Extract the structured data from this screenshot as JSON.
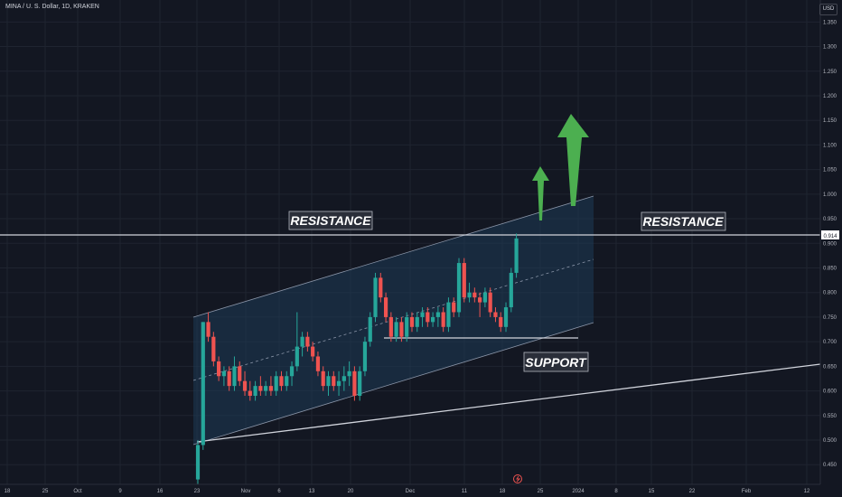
{
  "header": {
    "title": "MINA / U. S. Dollar, 1D, KRAKEN",
    "currency": "USD"
  },
  "annotations": {
    "resistance_left": "RESISTANCE",
    "resistance_right": "RESISTANCE",
    "support": "SUPPORT",
    "price_tag": "0.914"
  },
  "colors": {
    "up": "#26a69a",
    "down": "#ef5350",
    "background": "#131722",
    "grid": "#1f2430",
    "arrow": "#4caf50",
    "channel": "#1e3a56"
  },
  "chart_data": {
    "type": "candlestick",
    "y_ticks": [
      "1.350",
      "1.300",
      "1.250",
      "1.200",
      "1.150",
      "1.100",
      "1.050",
      "1.000",
      "0.950",
      "0.900",
      "0.850",
      "0.800",
      "0.750",
      "0.700",
      "0.650",
      "0.600",
      "0.550",
      "0.500",
      "0.450"
    ],
    "y_tick_values": [
      1.35,
      1.3,
      1.25,
      1.2,
      1.15,
      1.1,
      1.05,
      1.0,
      0.95,
      0.9,
      0.85,
      0.8,
      0.75,
      0.7,
      0.65,
      0.6,
      0.55,
      0.5,
      0.45
    ],
    "ylim": [
      0.41,
      1.38
    ],
    "x_ticks": [
      "18",
      "25",
      "Oct",
      "9",
      "16",
      "23",
      "Nov",
      "6",
      "13",
      "20",
      "Dec",
      "11",
      "18",
      "25",
      "2024",
      "8",
      "15",
      "22",
      "Feb",
      "12"
    ],
    "x_tick_pos": [
      8,
      50,
      86,
      133,
      177,
      218,
      272,
      309,
      345,
      388,
      454,
      514,
      556,
      598,
      640,
      682,
      721,
      766,
      826,
      893
    ],
    "candles": [
      [
        0.42,
        0.5,
        0.41,
        0.49
      ],
      [
        0.49,
        0.74,
        0.48,
        0.74
      ],
      [
        0.74,
        0.76,
        0.7,
        0.71
      ],
      [
        0.71,
        0.72,
        0.65,
        0.66
      ],
      [
        0.66,
        0.67,
        0.62,
        0.63
      ],
      [
        0.63,
        0.65,
        0.61,
        0.64
      ],
      [
        0.64,
        0.65,
        0.6,
        0.61
      ],
      [
        0.61,
        0.67,
        0.6,
        0.65
      ],
      [
        0.65,
        0.66,
        0.61,
        0.62
      ],
      [
        0.62,
        0.64,
        0.59,
        0.6
      ],
      [
        0.6,
        0.62,
        0.58,
        0.59
      ],
      [
        0.59,
        0.62,
        0.58,
        0.61
      ],
      [
        0.61,
        0.63,
        0.59,
        0.6
      ],
      [
        0.6,
        0.62,
        0.59,
        0.61
      ],
      [
        0.61,
        0.63,
        0.59,
        0.6
      ],
      [
        0.6,
        0.64,
        0.59,
        0.63
      ],
      [
        0.63,
        0.64,
        0.6,
        0.61
      ],
      [
        0.61,
        0.64,
        0.6,
        0.63
      ],
      [
        0.63,
        0.66,
        0.61,
        0.65
      ],
      [
        0.65,
        0.76,
        0.64,
        0.69
      ],
      [
        0.69,
        0.72,
        0.67,
        0.71
      ],
      [
        0.71,
        0.72,
        0.68,
        0.69
      ],
      [
        0.69,
        0.7,
        0.66,
        0.67
      ],
      [
        0.67,
        0.68,
        0.63,
        0.64
      ],
      [
        0.64,
        0.65,
        0.6,
        0.61
      ],
      [
        0.61,
        0.64,
        0.59,
        0.63
      ],
      [
        0.63,
        0.64,
        0.6,
        0.61
      ],
      [
        0.61,
        0.64,
        0.59,
        0.62
      ],
      [
        0.62,
        0.65,
        0.6,
        0.63
      ],
      [
        0.63,
        0.66,
        0.61,
        0.64
      ],
      [
        0.64,
        0.65,
        0.58,
        0.59
      ],
      [
        0.59,
        0.65,
        0.58,
        0.64
      ],
      [
        0.64,
        0.71,
        0.63,
        0.7
      ],
      [
        0.7,
        0.76,
        0.69,
        0.75
      ],
      [
        0.75,
        0.84,
        0.74,
        0.83
      ],
      [
        0.83,
        0.84,
        0.78,
        0.79
      ],
      [
        0.79,
        0.8,
        0.74,
        0.75
      ],
      [
        0.75,
        0.76,
        0.7,
        0.71
      ],
      [
        0.71,
        0.75,
        0.7,
        0.74
      ],
      [
        0.74,
        0.75,
        0.7,
        0.71
      ],
      [
        0.71,
        0.76,
        0.7,
        0.75
      ],
      [
        0.75,
        0.76,
        0.72,
        0.73
      ],
      [
        0.73,
        0.76,
        0.72,
        0.75
      ],
      [
        0.75,
        0.77,
        0.73,
        0.76
      ],
      [
        0.76,
        0.77,
        0.73,
        0.74
      ],
      [
        0.74,
        0.76,
        0.73,
        0.75
      ],
      [
        0.75,
        0.77,
        0.73,
        0.76
      ],
      [
        0.76,
        0.77,
        0.72,
        0.73
      ],
      [
        0.73,
        0.79,
        0.72,
        0.78
      ],
      [
        0.78,
        0.79,
        0.75,
        0.76
      ],
      [
        0.76,
        0.87,
        0.75,
        0.86
      ],
      [
        0.86,
        0.87,
        0.78,
        0.79
      ],
      [
        0.79,
        0.82,
        0.78,
        0.8
      ],
      [
        0.8,
        0.81,
        0.78,
        0.79
      ],
      [
        0.79,
        0.8,
        0.75,
        0.78
      ],
      [
        0.78,
        0.81,
        0.77,
        0.8
      ],
      [
        0.8,
        0.81,
        0.75,
        0.76
      ],
      [
        0.76,
        0.77,
        0.74,
        0.75
      ],
      [
        0.75,
        0.76,
        0.72,
        0.73
      ],
      [
        0.73,
        0.78,
        0.72,
        0.77
      ],
      [
        0.77,
        0.85,
        0.76,
        0.84
      ],
      [
        0.84,
        0.92,
        0.83,
        0.91
      ]
    ]
  }
}
